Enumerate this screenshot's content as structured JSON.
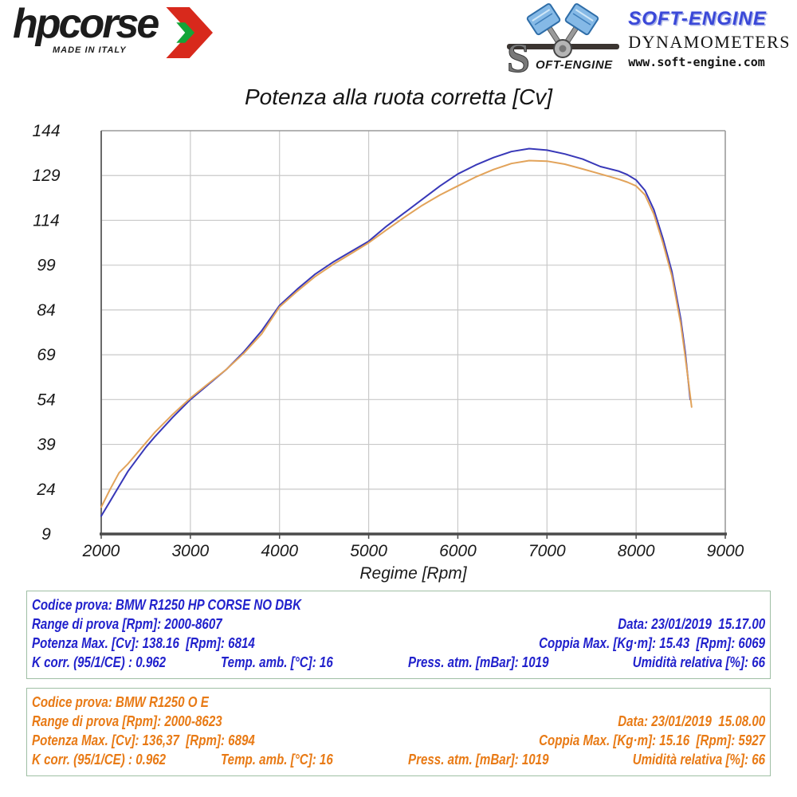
{
  "header": {
    "hpcorse": {
      "brand": "hpcorse",
      "tagline": "MADE IN ITALY"
    },
    "softengine": {
      "logo_text": "OFT-ENGINE",
      "brand": "SOFT-ENGINE",
      "line2": "DYNAMOMETERS",
      "website": "www.soft-engine.com"
    }
  },
  "chart_data": {
    "type": "line",
    "title": "Potenza alla ruota corretta [Cv]",
    "xlabel": "Regime [Rpm]",
    "ylabel": "",
    "xlim": [
      2000,
      9000
    ],
    "ylim": [
      9,
      144
    ],
    "xticks": [
      2000,
      3000,
      4000,
      5000,
      6000,
      7000,
      8000,
      9000
    ],
    "yticks": [
      9,
      24,
      39,
      54,
      69,
      84,
      99,
      114,
      129,
      144
    ],
    "grid": true,
    "legend_position": "none",
    "series": [
      {
        "name": "BMW R1250 HP CORSE NO DBK",
        "color": "#3838b8",
        "x": [
          2000,
          2100,
          2200,
          2300,
          2400,
          2500,
          2600,
          2800,
          3000,
          3200,
          3400,
          3600,
          3800,
          4000,
          4200,
          4400,
          4600,
          4800,
          5000,
          5200,
          5400,
          5600,
          5800,
          6000,
          6200,
          6400,
          6600,
          6800,
          7000,
          7200,
          7400,
          7600,
          7800,
          7900,
          8000,
          8100,
          8200,
          8300,
          8400,
          8500,
          8550,
          8607
        ],
        "values": [
          15,
          20,
          25,
          30,
          34,
          38,
          41.5,
          48,
          54,
          59,
          64,
          70,
          77,
          85.5,
          91,
          96,
          100,
          103.5,
          107,
          112,
          116.5,
          121,
          125.5,
          129.5,
          132.5,
          135,
          137,
          138,
          137.5,
          136.2,
          134.5,
          132,
          130.5,
          129.3,
          127.5,
          124,
          117.5,
          108,
          97,
          81,
          70,
          54
        ]
      },
      {
        "name": "BMW R1250 O E",
        "color": "#e2a35a",
        "x": [
          2000,
          2100,
          2200,
          2300,
          2400,
          2500,
          2600,
          2800,
          3000,
          3200,
          3400,
          3600,
          3800,
          4000,
          4200,
          4400,
          4600,
          4800,
          5000,
          5200,
          5400,
          5600,
          5800,
          6000,
          6200,
          6400,
          6600,
          6800,
          7000,
          7200,
          7400,
          7600,
          7800,
          7900,
          8000,
          8100,
          8200,
          8300,
          8400,
          8500,
          8550,
          8623
        ],
        "values": [
          18,
          24,
          29.5,
          32.5,
          36,
          39.5,
          43,
          49,
          54.5,
          59.3,
          64,
          69.5,
          76,
          85,
          90.3,
          95.2,
          99.2,
          102.8,
          106.5,
          110.8,
          115,
          119,
          122.5,
          125.5,
          128.5,
          131,
          133,
          134,
          133.8,
          132.8,
          131.2,
          129.5,
          127.8,
          126.8,
          125.5,
          122.5,
          116,
          106.5,
          95.5,
          79.5,
          68.5,
          51.5
        ]
      }
    ]
  },
  "tables": [
    {
      "codice": "Codice prova: BMW R1250 HP CORSE NO DBK",
      "range": "Range di prova [Rpm]: 2000-8607",
      "data": "Data: 23/01/2019  15.17.00",
      "potenza": "Potenza Max. [Cv]: 138.16  [Rpm]: 6814",
      "coppia": "Coppia Max. [Kg·m]: 15.43  [Rpm]: 6069",
      "kcorr": "K corr. (95/1/CE) : 0.962",
      "temp": "Temp. amb. [°C]: 16",
      "press": "Press. atm. [mBar]: 1019",
      "umidita": "Umidità relativa [%]: 66",
      "text_color": "#2121cc"
    },
    {
      "codice": "Codice prova: BMW R1250 O E",
      "range": "Range di prova [Rpm]: 2000-8623",
      "data": "Data: 23/01/2019  15.08.00",
      "potenza": "Potenza Max. [Cv]: 136,37  [Rpm]: 6894",
      "coppia": "Coppia Max. [Kg·m]: 15.16  [Rpm]: 5927",
      "kcorr": "K corr. (95/1/CE) : 0.962",
      "temp": "Temp. amb. [°C]: 16",
      "press": "Press. atm. [mBar]: 1019",
      "umidita": "Umidità relativa [%]: 66",
      "text_color": "#e87a15"
    }
  ]
}
